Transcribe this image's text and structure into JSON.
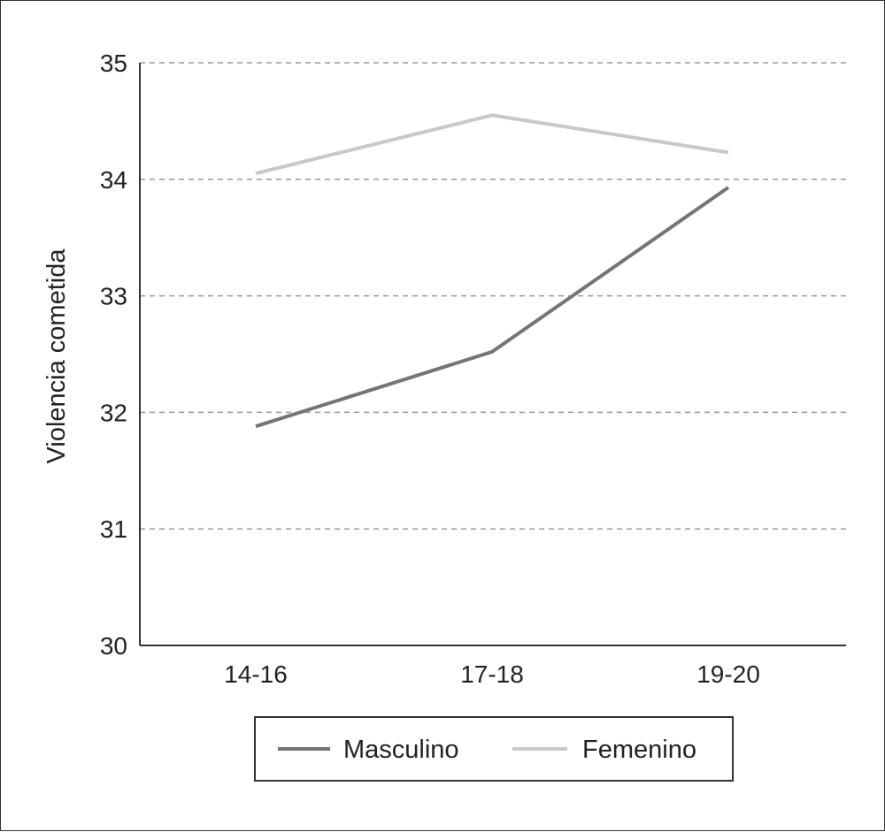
{
  "chart_data": {
    "type": "line",
    "categories": [
      "14-16",
      "17-18",
      "19-20"
    ],
    "series": [
      {
        "name": "Masculino",
        "values": [
          31.88,
          32.52,
          33.93
        ],
        "color": "#757575"
      },
      {
        "name": "Femenino",
        "values": [
          34.05,
          34.55,
          34.23
        ],
        "color": "#c8c8c8"
      }
    ],
    "ylabel": "Violencia cometida",
    "ylim": [
      30,
      35
    ],
    "yticks": [
      "30",
      "31",
      "32",
      "33",
      "34",
      "35"
    ],
    "grid": true,
    "legend_position": "bottom"
  }
}
